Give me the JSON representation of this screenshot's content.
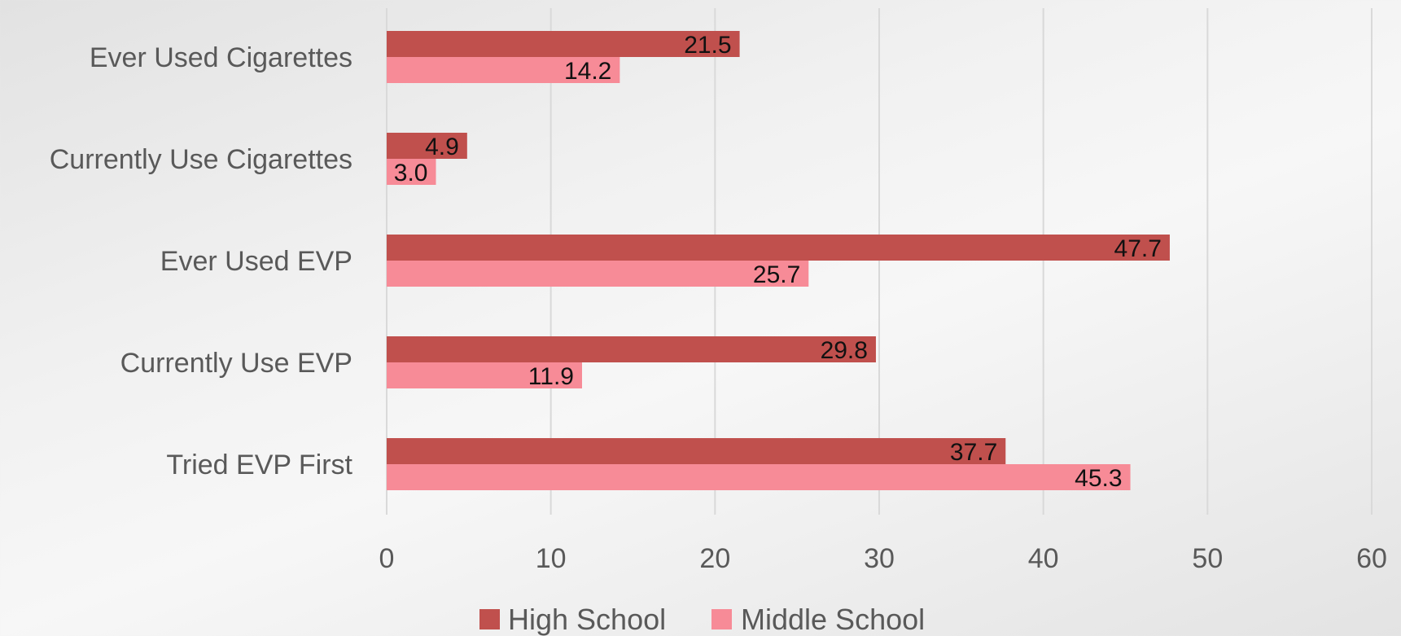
{
  "chart_data": {
    "type": "bar",
    "orientation": "horizontal",
    "categories": [
      "Ever Used Cigarettes",
      "Currently Use Cigarettes",
      "Ever Used EVP",
      "Currently Use EVP",
      "Tried EVP First"
    ],
    "series": [
      {
        "name": "High School",
        "color": "#c0504d",
        "values": [
          21.5,
          4.9,
          47.7,
          29.8,
          37.7
        ],
        "labels": [
          "21.5",
          "4.9",
          "47.7",
          "29.8",
          "37.7"
        ]
      },
      {
        "name": "Middle School",
        "color": "#f78b97",
        "values": [
          14.2,
          3.0,
          25.7,
          11.9,
          45.3
        ],
        "labels": [
          "14.2",
          "3.0",
          "25.7",
          "11.9",
          "45.3"
        ]
      }
    ],
    "xlim": [
      0,
      60
    ],
    "xticks": [
      "0",
      "10",
      "20",
      "30",
      "40",
      "50",
      "60"
    ],
    "grid": true,
    "legend_position": "bottom",
    "title": "",
    "xlabel": "",
    "ylabel": ""
  }
}
